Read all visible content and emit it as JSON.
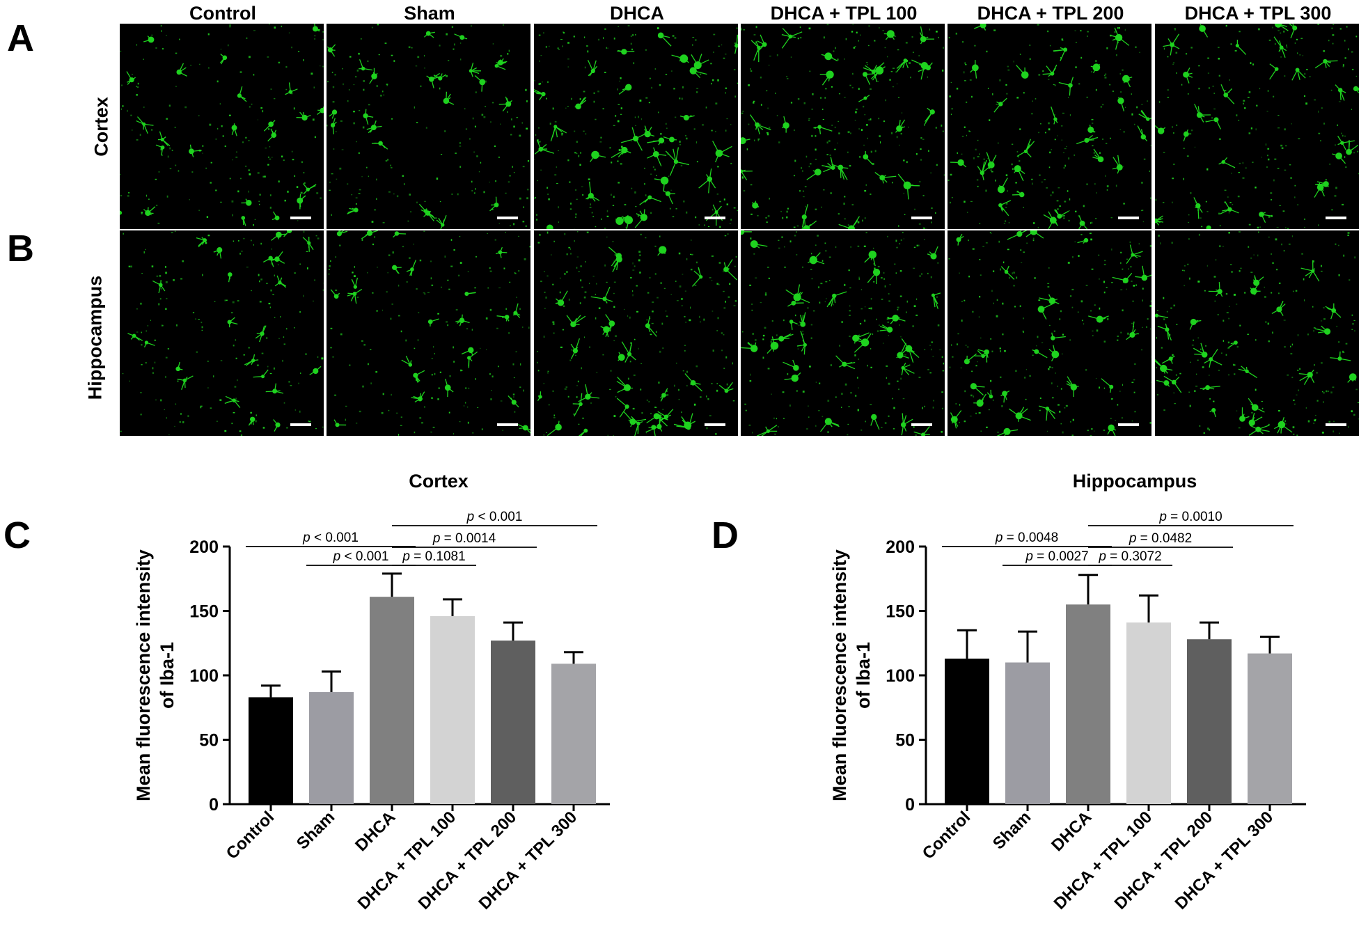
{
  "panels": {
    "A": "A",
    "B": "B",
    "C": "C",
    "D": "D"
  },
  "micrograph": {
    "columns": [
      "Control",
      "Sham",
      "DHCA",
      "DHCA + TPL 100",
      "DHCA + TPL 200",
      "DHCA + TPL 300"
    ],
    "rows": [
      "Cortex",
      "Hippocampus"
    ],
    "stain_color": "#1fd21f",
    "background_color": "#000000"
  },
  "chart_data": [
    {
      "type": "bar",
      "title": "Cortex",
      "ylabel": "Mean fluorescence intensity of Iba-1",
      "xlabel": "",
      "categories": [
        "Control",
        "Sham",
        "DHCA",
        "DHCA + TPL 100",
        "DHCA + TPL 200",
        "DHCA + TPL 300"
      ],
      "values": [
        83,
        87,
        161,
        146,
        127,
        109
      ],
      "errors": [
        9,
        16,
        18,
        13,
        14,
        9
      ],
      "colors": [
        "#000000",
        "#9c9ca3",
        "#808080",
        "#d3d3d3",
        "#5f5f5f",
        "#a4a4a8"
      ],
      "ylim": [
        0,
        200
      ],
      "yticks": [
        0,
        50,
        100,
        150,
        200
      ],
      "comparisons": [
        {
          "from": 0,
          "to": 2,
          "label": "p < 0.001"
        },
        {
          "from": 1,
          "to": 2,
          "label": "p < 0.001"
        },
        {
          "from": 2,
          "to": 3,
          "label": "p = 0.1081"
        },
        {
          "from": 2,
          "to": 4,
          "label": "p = 0.0014"
        },
        {
          "from": 2,
          "to": 5,
          "label": "p < 0.001"
        }
      ]
    },
    {
      "type": "bar",
      "title": "Hippocampus",
      "ylabel": "Mean fluorescence intensity of Iba-1",
      "xlabel": "",
      "categories": [
        "Control",
        "Sham",
        "DHCA",
        "DHCA + TPL 100",
        "DHCA + TPL 200",
        "DHCA + TPL 300"
      ],
      "values": [
        113,
        110,
        155,
        141,
        128,
        117
      ],
      "errors": [
        22,
        24,
        23,
        21,
        13,
        13
      ],
      "colors": [
        "#000000",
        "#9c9ca3",
        "#808080",
        "#d3d3d3",
        "#5f5f5f",
        "#a4a4a8"
      ],
      "ylim": [
        0,
        200
      ],
      "yticks": [
        0,
        50,
        100,
        150,
        200
      ],
      "comparisons": [
        {
          "from": 0,
          "to": 2,
          "label": "p = 0.0048"
        },
        {
          "from": 1,
          "to": 2,
          "label": "p = 0.0027"
        },
        {
          "from": 2,
          "to": 3,
          "label": "p = 0.3072"
        },
        {
          "from": 2,
          "to": 4,
          "label": "p = 0.0482"
        },
        {
          "from": 2,
          "to": 5,
          "label": "p = 0.0010"
        }
      ]
    }
  ]
}
